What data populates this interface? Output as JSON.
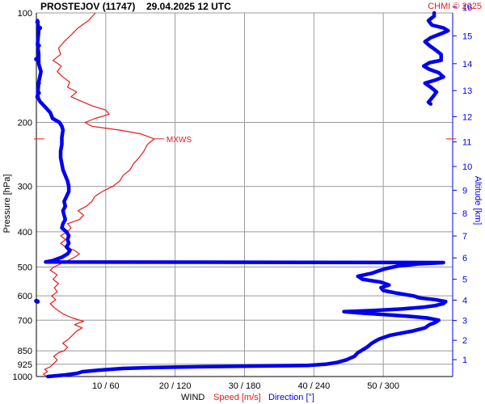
{
  "chart_data": {
    "type": "line",
    "title": "PROSTEJOV (11747)",
    "subtitle": "29.04.2025 12 UTC",
    "credit": "CHMI © 2025",
    "ylabel_left": "Pressure [hPa]",
    "ylabel_right": "Altitude [km]",
    "x_axis_caption": "WIND",
    "x_label_speed": "Speed [m/s]",
    "x_label_direction": "Direction [°]",
    "x_ticks": [
      "10 / 60",
      "20 / 120",
      "30 / 180",
      "40 / 240",
      "50 / 300"
    ],
    "xlim_speed": [
      0,
      60
    ],
    "xlim_direction": [
      0,
      360
    ],
    "y_scale": "log",
    "ylim_pressure": [
      1000,
      100
    ],
    "pressure_ticks": [
      "100",
      "200",
      "300",
      "400",
      "500",
      "600",
      "700",
      "850",
      "925",
      "1000"
    ],
    "altitude_ticks": [
      "1",
      "2",
      "3",
      "4",
      "5",
      "6",
      "7",
      "8",
      "9",
      "10",
      "11",
      "12",
      "13",
      "14",
      "15",
      "16"
    ],
    "annotation": {
      "text": "MXWS",
      "pressure": 222,
      "speed": 17
    },
    "colors": {
      "speed": "#e41a1c",
      "direction": "#0000ee",
      "grid": "#9a9a9a",
      "text": "#000000",
      "credit": "#e41a1c"
    },
    "series": [
      {
        "name": "Speed [m/s]",
        "points": [
          [
            1000,
            1.5
          ],
          [
            985,
            1.0
          ],
          [
            970,
            1.6
          ],
          [
            955,
            1.2
          ],
          [
            940,
            2.0
          ],
          [
            925,
            2.4
          ],
          [
            900,
            3.0
          ],
          [
            880,
            2.5
          ],
          [
            860,
            3.2
          ],
          [
            850,
            4.0
          ],
          [
            830,
            4.5
          ],
          [
            810,
            3.8
          ],
          [
            790,
            4.6
          ],
          [
            770,
            5.2
          ],
          [
            750,
            5.8
          ],
          [
            735,
            6.6
          ],
          [
            720,
            5.5
          ],
          [
            705,
            6.8
          ],
          [
            690,
            5.2
          ],
          [
            675,
            4.0
          ],
          [
            660,
            3.2
          ],
          [
            645,
            2.5
          ],
          [
            630,
            2.0
          ],
          [
            615,
            2.8
          ],
          [
            600,
            2.2
          ],
          [
            585,
            3.0
          ],
          [
            570,
            2.6
          ],
          [
            555,
            3.2
          ],
          [
            540,
            2.4
          ],
          [
            525,
            3.0
          ],
          [
            510,
            2.0
          ],
          [
            500,
            2.5
          ],
          [
            490,
            3.5
          ],
          [
            480,
            4.5
          ],
          [
            470,
            5.5
          ],
          [
            460,
            6.2
          ],
          [
            450,
            5.5
          ],
          [
            440,
            4.2
          ],
          [
            430,
            3.5
          ],
          [
            420,
            4.2
          ],
          [
            410,
            3.5
          ],
          [
            400,
            4.5
          ],
          [
            390,
            5.0
          ],
          [
            380,
            4.5
          ],
          [
            370,
            6.2
          ],
          [
            360,
            6.8
          ],
          [
            350,
            6.0
          ],
          [
            340,
            7.2
          ],
          [
            330,
            8.0
          ],
          [
            320,
            8.4
          ],
          [
            310,
            9.5
          ],
          [
            300,
            11.0
          ],
          [
            290,
            12.0
          ],
          [
            280,
            12.5
          ],
          [
            270,
            13.5
          ],
          [
            260,
            14.0
          ],
          [
            250,
            14.8
          ],
          [
            240,
            15.5
          ],
          [
            230,
            16.0
          ],
          [
            222,
            17.0
          ],
          [
            215,
            15.0
          ],
          [
            210,
            12.0
          ],
          [
            205,
            8.0
          ],
          [
            200,
            7.0
          ],
          [
            195,
            8.5
          ],
          [
            190,
            10.5
          ],
          [
            185,
            10.0
          ],
          [
            180,
            8.0
          ],
          [
            175,
            6.5
          ],
          [
            170,
            5.0
          ],
          [
            165,
            5.8
          ],
          [
            160,
            4.5
          ],
          [
            155,
            4.8
          ],
          [
            150,
            3.8
          ],
          [
            145,
            3.0
          ],
          [
            140,
            3.6
          ],
          [
            135,
            2.4
          ],
          [
            130,
            3.5
          ],
          [
            125,
            3.2
          ],
          [
            120,
            4.0
          ],
          [
            115,
            5.0
          ],
          [
            110,
            6.0
          ],
          [
            105,
            7.5
          ],
          [
            100,
            8.5
          ]
        ]
      },
      {
        "name": "Direction [°]",
        "points": [
          [
            1000,
            10
          ],
          [
            990,
            25
          ],
          [
            980,
            35
          ],
          [
            970,
            40
          ],
          [
            960,
            55
          ],
          [
            955,
            65
          ],
          [
            950,
            75
          ],
          [
            945,
            100
          ],
          [
            940,
            140
          ],
          [
            935,
            200
          ],
          [
            932,
            235
          ],
          [
            925,
            250
          ],
          [
            915,
            260
          ],
          [
            900,
            268
          ],
          [
            880,
            275
          ],
          [
            860,
            278
          ],
          [
            845,
            282
          ],
          [
            830,
            286
          ],
          [
            810,
            290
          ],
          [
            790,
            296
          ],
          [
            770,
            306
          ],
          [
            750,
            325
          ],
          [
            735,
            336
          ],
          [
            720,
            340
          ],
          [
            710,
            345
          ],
          [
            700,
            348
          ],
          [
            690,
            338
          ],
          [
            682,
            320
          ],
          [
            675,
            300
          ],
          [
            668,
            278
          ],
          [
            663,
            266
          ],
          [
            658,
            292
          ],
          [
            652,
            316
          ],
          [
            645,
            334
          ],
          [
            638,
            345
          ],
          [
            630,
            352
          ],
          [
            622,
            354
          ],
          [
            614,
            344
          ],
          [
            608,
            332
          ],
          [
            600,
            326
          ],
          [
            590,
            312
          ],
          [
            580,
            300
          ],
          [
            570,
            298
          ],
          [
            560,
            305
          ],
          [
            550,
            298
          ],
          [
            540,
            282
          ],
          [
            530,
            278
          ],
          [
            520,
            290
          ],
          [
            512,
            296
          ],
          [
            505,
            302
          ],
          [
            497,
            312
          ],
          [
            490,
            330
          ],
          [
            486,
            352
          ],
          [
            484,
            8
          ],
          [
            480,
            14
          ],
          [
            475,
            18
          ],
          [
            470,
            22
          ],
          [
            460,
            27
          ],
          [
            450,
            29
          ],
          [
            440,
            26
          ],
          [
            430,
            28
          ],
          [
            420,
            27
          ],
          [
            410,
            28
          ],
          [
            400,
            26
          ],
          [
            390,
            22
          ],
          [
            380,
            23
          ],
          [
            370,
            25
          ],
          [
            360,
            24
          ],
          [
            350,
            23
          ],
          [
            340,
            25
          ],
          [
            330,
            24
          ],
          [
            320,
            26
          ],
          [
            310,
            28
          ],
          [
            300,
            28
          ],
          [
            290,
            27
          ],
          [
            280,
            25
          ],
          [
            270,
            23
          ],
          [
            260,
            22
          ],
          [
            250,
            21
          ],
          [
            240,
            21
          ],
          [
            230,
            22
          ],
          [
            220,
            22
          ],
          [
            210,
            23
          ],
          [
            205,
            22
          ],
          [
            200,
            20
          ],
          [
            195,
            14
          ],
          [
            188,
            12
          ],
          [
            182,
            8
          ],
          [
            175,
            3
          ],
          [
            170,
            1
          ],
          [
            155,
            2
          ],
          [
            145,
            4
          ],
          [
            138,
            2
          ],
          [
            130,
            2
          ],
          [
            122,
            1
          ],
          [
            112,
            2
          ],
          [
            105,
            1
          ]
        ]
      },
      {
        "name": "Direction [°] (upper segment)",
        "points": [
          [
            178,
            341
          ],
          [
            176,
            339
          ],
          [
            170,
            343
          ],
          [
            165,
            346
          ],
          [
            160,
            341
          ],
          [
            156,
            336
          ],
          [
            153,
            345
          ],
          [
            150,
            352
          ],
          [
            146,
            348
          ],
          [
            143,
            340
          ],
          [
            140,
            335
          ],
          [
            137,
            340
          ],
          [
            135,
            350
          ],
          [
            130,
            350
          ],
          [
            127,
            346
          ],
          [
            123,
            340
          ],
          [
            120,
            336
          ],
          [
            117,
            341
          ],
          [
            114,
            350
          ],
          [
            112,
            356
          ],
          [
            110,
            352
          ],
          [
            108,
            342
          ],
          [
            105,
            339
          ],
          [
            102,
            344
          ],
          [
            100,
            344
          ]
        ]
      }
    ],
    "isolated_direction_points": [
      [
        106,
        1
      ],
      [
        110,
        3
      ],
      [
        123,
        2
      ],
      [
        134,
        0
      ],
      [
        156,
        2
      ],
      [
        166,
        2
      ],
      [
        170,
        1
      ],
      [
        620,
        0
      ],
      [
        622,
        1
      ]
    ]
  }
}
